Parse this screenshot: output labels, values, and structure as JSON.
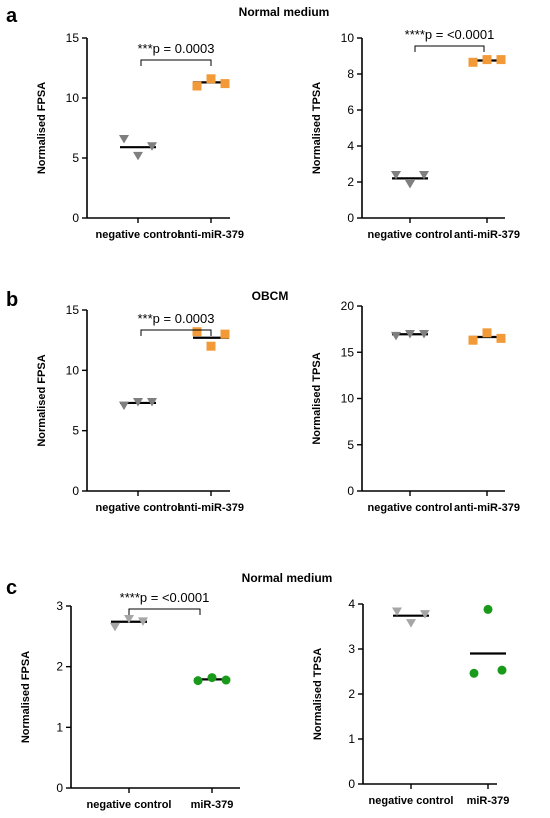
{
  "panels": [
    {
      "letter": "a",
      "title": "Normal medium"
    },
    {
      "letter": "b",
      "title": "OBCM"
    },
    {
      "letter": "c",
      "title": "Normal medium"
    }
  ],
  "colors": {
    "gray": "#7f7f7f",
    "light_gray": "#a6a6a6",
    "orange": "#f39a38",
    "green": "#1a9a1a",
    "axis": "#000000"
  },
  "chart_data": [
    {
      "id": "a-left",
      "type": "scatter",
      "ylabel": "Normalised FPSA",
      "ylim": [
        0,
        15
      ],
      "yticks": [
        0,
        5,
        10,
        15
      ],
      "categories": [
        "negative control",
        "anti-miR-379"
      ],
      "groups": [
        {
          "name": "negative control",
          "marker": "triangle",
          "color": "#7f7f7f",
          "points": [
            6.6,
            5.2,
            6.0
          ],
          "mean": 5.9
        },
        {
          "name": "anti-miR-379",
          "marker": "square",
          "color": "#f39a38",
          "points": [
            11.0,
            11.6,
            11.2
          ],
          "mean": 11.3
        }
      ],
      "significance": "***p = 0.0003"
    },
    {
      "id": "a-right",
      "type": "scatter",
      "ylabel": "Normalised TPSA",
      "ylim": [
        0,
        10
      ],
      "yticks": [
        0,
        2,
        4,
        6,
        8,
        10
      ],
      "categories": [
        "negative control",
        "anti-miR-379"
      ],
      "groups": [
        {
          "name": "negative control",
          "marker": "triangle",
          "color": "#7f7f7f",
          "points": [
            2.4,
            1.9,
            2.4
          ],
          "mean": 2.2
        },
        {
          "name": "anti-miR-379",
          "marker": "square",
          "color": "#f39a38",
          "points": [
            8.65,
            8.8,
            8.8
          ],
          "mean": 8.75
        }
      ],
      "significance": "****p = <0.0001"
    },
    {
      "id": "b-left",
      "type": "scatter",
      "ylabel": "Normalised FPSA",
      "ylim": [
        0,
        15
      ],
      "yticks": [
        0,
        5,
        10,
        15
      ],
      "categories": [
        "negative control",
        "anti-miR-379"
      ],
      "groups": [
        {
          "name": "negative control",
          "marker": "triangle",
          "color": "#7f7f7f",
          "points": [
            7.1,
            7.4,
            7.4
          ],
          "mean": 7.3
        },
        {
          "name": "anti-miR-379",
          "marker": "square",
          "color": "#f39a38",
          "points": [
            13.2,
            12.0,
            13.0
          ],
          "mean": 12.7
        }
      ],
      "significance": "***p = 0.0003"
    },
    {
      "id": "b-right",
      "type": "scatter",
      "ylabel": "Normalised TPSA",
      "ylim": [
        0,
        20
      ],
      "yticks": [
        0,
        5,
        10,
        15,
        20
      ],
      "categories": [
        "negative control",
        "anti-miR-379"
      ],
      "groups": [
        {
          "name": "negative control",
          "marker": "triangle",
          "color": "#7f7f7f",
          "points": [
            16.8,
            17.0,
            17.0
          ],
          "mean": 16.95
        },
        {
          "name": "anti-miR-379",
          "marker": "square",
          "color": "#f39a38",
          "points": [
            16.3,
            17.1,
            16.5
          ],
          "mean": 16.65
        }
      ],
      "significance": ""
    },
    {
      "id": "c-left",
      "type": "scatter",
      "ylabel": "Normalised FPSA",
      "ylim": [
        0,
        3
      ],
      "yticks": [
        0,
        1,
        2,
        3
      ],
      "categories": [
        "negative control",
        "miR-379"
      ],
      "groups": [
        {
          "name": "negative control",
          "marker": "triangle",
          "color": "#a6a6a6",
          "points": [
            2.66,
            2.79,
            2.75
          ],
          "mean": 2.74
        },
        {
          "name": "miR-379",
          "marker": "circle",
          "color": "#1a9a1a",
          "points": [
            1.77,
            1.82,
            1.78
          ],
          "mean": 1.79
        }
      ],
      "significance": "****p = <0.0001"
    },
    {
      "id": "c-right",
      "type": "scatter",
      "ylabel": "Normalised TPSA",
      "ylim": [
        0,
        4
      ],
      "yticks": [
        0,
        1,
        2,
        3,
        4
      ],
      "categories": [
        "negative control",
        "miR-379"
      ],
      "groups": [
        {
          "name": "negative control",
          "marker": "triangle",
          "color": "#a6a6a6",
          "points": [
            3.84,
            3.58,
            3.78
          ],
          "mean": 3.74
        },
        {
          "name": "miR-379",
          "marker": "circle",
          "color": "#1a9a1a",
          "points": [
            2.46,
            3.88,
            2.53
          ],
          "mean": 2.9
        }
      ],
      "significance": ""
    }
  ]
}
